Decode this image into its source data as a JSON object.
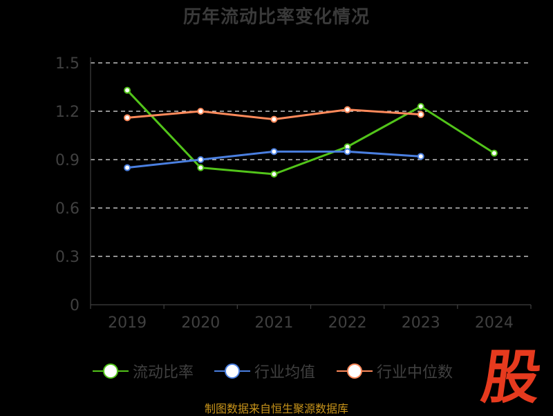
{
  "chart_data": {
    "type": "line",
    "title": "历年流动比率变化情况",
    "categories": [
      "2019",
      "2020",
      "2021",
      "2022",
      "2023",
      "2024"
    ],
    "ylim": [
      0,
      1.5
    ],
    "yticks": [
      "0",
      "0.3",
      "0.6",
      "0.9",
      "1.2",
      "1.5"
    ],
    "grid": true,
    "legend_position": "bottom",
    "series": [
      {
        "name": "流动比率",
        "color": "#52c41a",
        "values": [
          1.33,
          0.85,
          0.81,
          0.98,
          1.23,
          0.94
        ]
      },
      {
        "name": "行业均值",
        "color": "#4a7fe0",
        "values": [
          0.85,
          0.9,
          0.95,
          0.95,
          0.92,
          null
        ]
      },
      {
        "name": "行业中位数",
        "color": "#ff8a5b",
        "values": [
          1.16,
          1.2,
          1.15,
          1.21,
          1.18,
          null
        ]
      }
    ]
  },
  "source_text": "制图数据来自恒生聚源数据库",
  "logo_text": "股"
}
